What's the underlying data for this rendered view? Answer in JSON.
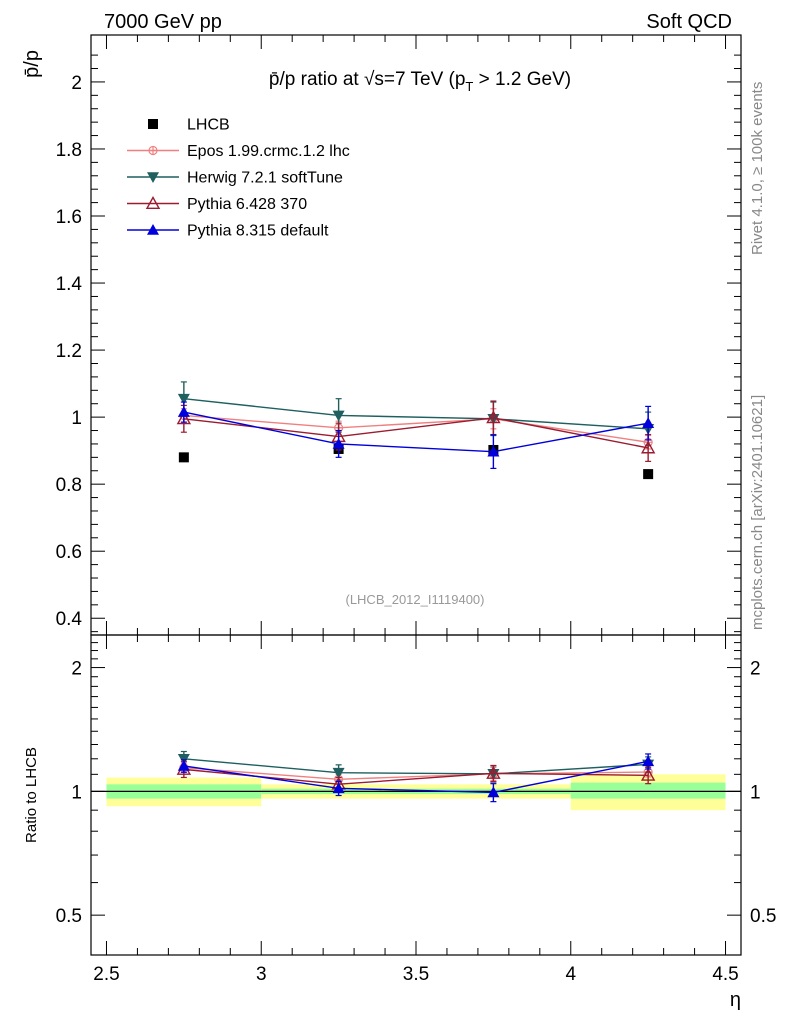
{
  "header": {
    "left": "7000 GeV pp",
    "right": "Soft QCD"
  },
  "side_text": {
    "rivet": "Rivet 4.1.0, ≥ 100k events",
    "mcplots": "mcplots.cern.ch [arXiv:2401.10621]"
  },
  "chart_data": [
    {
      "type": "scatter",
      "panel": "main",
      "title_prefix": "p̄/p ratio at √s=7 TeV (p",
      "title_sub": "T",
      "title_suffix": " > 1.2 GeV)",
      "ylabel": "p̄/p",
      "annotation": "(LHCB_2012_I1119400)",
      "xlim": [
        2.45,
        4.55
      ],
      "ylim": [
        0.35,
        2.14
      ],
      "yticks": [
        0.4,
        0.6,
        0.8,
        1,
        1.2,
        1.4,
        1.6,
        1.8,
        2
      ],
      "ytick_labels": [
        "0.4",
        "0.6",
        "0.8",
        "1",
        "1.2",
        "1.4",
        "1.6",
        "1.8",
        "2"
      ],
      "x": [
        2.75,
        3.25,
        3.75,
        4.25
      ],
      "series": [
        {
          "name": "LHCB",
          "color": "#000000",
          "marker": "square",
          "line": false,
          "values": [
            0.88,
            0.905,
            0.902,
            0.83
          ],
          "err": [
            0.005,
            0.005,
            0.005,
            0.005
          ]
        },
        {
          "name": "Epos 1.99.crmc.1.2 lhc",
          "color": "#f08080",
          "marker": "cross-circle",
          "line": true,
          "values": [
            1.005,
            0.968,
            0.995,
            0.925
          ],
          "err": [
            0.02,
            0.02,
            0.03,
            0.02
          ]
        },
        {
          "name": "Herwig 7.2.1 softTune",
          "color": "#1f5f5f",
          "marker": "triangle-down",
          "line": true,
          "values": [
            1.055,
            1.005,
            0.995,
            0.965
          ],
          "err": [
            0.05,
            0.05,
            0.05,
            0.05
          ]
        },
        {
          "name": "Pythia 6.428 370",
          "color": "#9b1b30",
          "marker": "triangle-up-open",
          "line": true,
          "values": [
            0.995,
            0.942,
            0.998,
            0.908
          ],
          "err": [
            0.04,
            0.04,
            0.05,
            0.04
          ]
        },
        {
          "name": "Pythia 8.315 default",
          "color": "#0000dd",
          "marker": "triangle-up",
          "line": true,
          "values": [
            1.015,
            0.92,
            0.897,
            0.982
          ],
          "err": [
            0.03,
            0.04,
            0.05,
            0.05
          ]
        }
      ]
    },
    {
      "type": "scatter",
      "panel": "ratio",
      "ylabel": "Ratio to LHCB",
      "xlabel": "η",
      "xlim": [
        2.45,
        4.55
      ],
      "ylim": [
        0.4,
        2.4
      ],
      "log_y": true,
      "yticks": [
        0.5,
        1,
        2
      ],
      "ytick_labels": [
        "0.5",
        "1",
        "2"
      ],
      "xticks": [
        2.5,
        3,
        3.5,
        4,
        4.5
      ],
      "xtick_labels": [
        "2.5",
        "3",
        "3.5",
        "4",
        "4.5"
      ],
      "x": [
        2.75,
        3.25,
        3.75,
        4.25
      ],
      "bands": [
        {
          "x0": 2.5,
          "x1": 3.0,
          "inner": [
            0.96,
            1.04
          ],
          "outer": [
            0.92,
            1.08
          ]
        },
        {
          "x0": 3.0,
          "x1": 4.0,
          "inner": [
            0.985,
            1.015
          ],
          "outer": [
            0.96,
            1.04
          ]
        },
        {
          "x0": 4.0,
          "x1": 4.5,
          "inner": [
            0.96,
            1.05
          ],
          "outer": [
            0.9,
            1.1
          ]
        }
      ],
      "series": [
        {
          "name": "Epos 1.99.crmc.1.2 lhc",
          "color": "#f08080",
          "marker": "cross-circle",
          "values": [
            1.142,
            1.07,
            1.103,
            1.114
          ],
          "err": [
            0.03,
            0.03,
            0.04,
            0.03
          ]
        },
        {
          "name": "Herwig 7.2.1 softTune",
          "color": "#1f5f5f",
          "marker": "triangle-down",
          "values": [
            1.2,
            1.11,
            1.103,
            1.163
          ],
          "err": [
            0.05,
            0.05,
            0.05,
            0.05
          ]
        },
        {
          "name": "Pythia 6.428 370",
          "color": "#9b1b30",
          "marker": "triangle-up-open",
          "values": [
            1.131,
            1.041,
            1.106,
            1.094
          ],
          "err": [
            0.05,
            0.04,
            0.05,
            0.05
          ]
        },
        {
          "name": "Pythia 8.315 default",
          "color": "#0000dd",
          "marker": "triangle-up",
          "values": [
            1.153,
            1.017,
            0.994,
            1.183
          ],
          "err": [
            0.04,
            0.04,
            0.05,
            0.05
          ]
        }
      ]
    }
  ]
}
